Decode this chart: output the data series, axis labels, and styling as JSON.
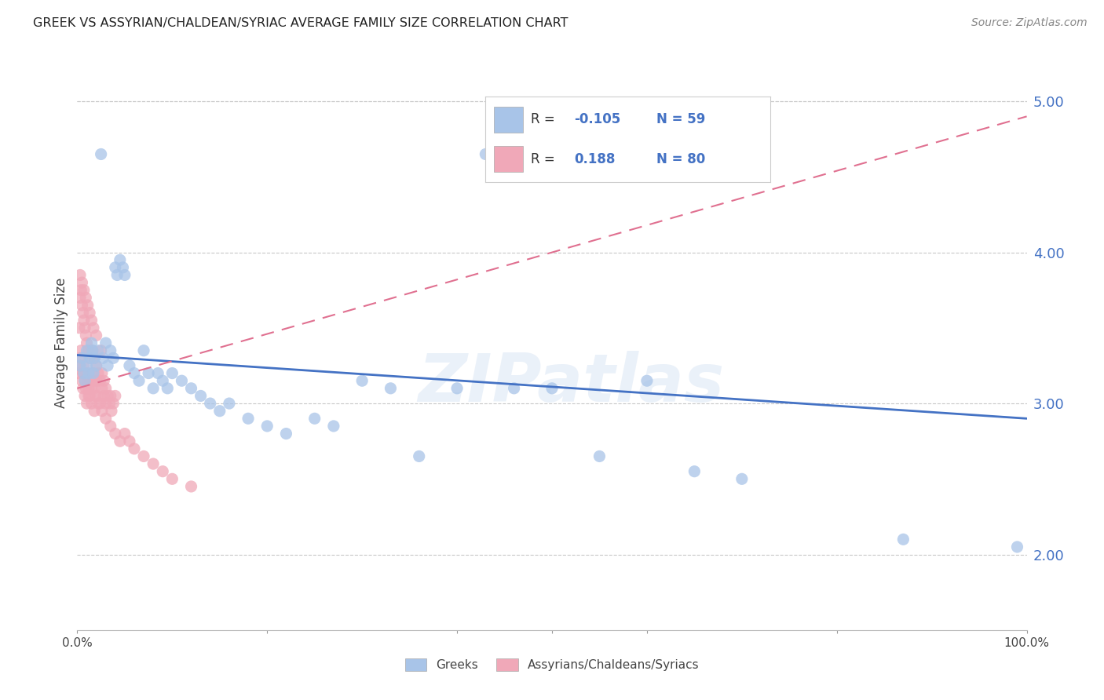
{
  "title": "GREEK VS ASSYRIAN/CHALDEAN/SYRIAC AVERAGE FAMILY SIZE CORRELATION CHART",
  "source": "Source: ZipAtlas.com",
  "ylabel": "Average Family Size",
  "watermark": "ZIPatlas",
  "blue_label": "Greeks",
  "pink_label": "Assyrians/Chaldeans/Syriacs",
  "blue_R": "-0.105",
  "blue_N": "59",
  "pink_R": "0.188",
  "pink_N": "80",
  "blue_color": "#a8c4e8",
  "pink_color": "#f0a8b8",
  "blue_line_color": "#4472c4",
  "pink_line_color": "#e07090",
  "grid_color": "#c8c8c8",
  "background_color": "#ffffff",
  "text_blue": "#4472c4",
  "xlim": [
    0.0,
    1.0
  ],
  "ylim": [
    1.5,
    5.3
  ],
  "yticks": [
    2.0,
    3.0,
    4.0,
    5.0
  ],
  "blue_scatter_x": [
    0.003,
    0.005,
    0.007,
    0.008,
    0.01,
    0.01,
    0.012,
    0.013,
    0.015,
    0.016,
    0.017,
    0.018,
    0.02,
    0.022,
    0.025,
    0.027,
    0.03,
    0.032,
    0.035,
    0.038,
    0.04,
    0.042,
    0.045,
    0.048,
    0.05,
    0.055,
    0.06,
    0.065,
    0.07,
    0.075,
    0.08,
    0.085,
    0.09,
    0.095,
    0.1,
    0.11,
    0.12,
    0.13,
    0.14,
    0.15,
    0.16,
    0.18,
    0.2,
    0.22,
    0.25,
    0.27,
    0.3,
    0.33,
    0.36,
    0.4,
    0.43,
    0.46,
    0.5,
    0.55,
    0.6,
    0.65,
    0.7,
    0.87,
    0.99
  ],
  "blue_scatter_y": [
    3.25,
    3.3,
    3.2,
    3.15,
    3.25,
    3.35,
    3.2,
    3.3,
    3.4,
    3.35,
    3.2,
    3.3,
    3.25,
    3.35,
    4.65,
    3.3,
    3.4,
    3.25,
    3.35,
    3.3,
    3.9,
    3.85,
    3.95,
    3.9,
    3.85,
    3.25,
    3.2,
    3.15,
    3.35,
    3.2,
    3.1,
    3.2,
    3.15,
    3.1,
    3.2,
    3.15,
    3.1,
    3.05,
    3.0,
    2.95,
    3.0,
    2.9,
    2.85,
    2.8,
    2.9,
    2.85,
    3.15,
    3.1,
    2.65,
    3.1,
    4.65,
    3.1,
    3.1,
    2.65,
    3.15,
    2.55,
    2.5,
    2.1,
    2.05
  ],
  "pink_scatter_x": [
    0.001,
    0.002,
    0.003,
    0.004,
    0.005,
    0.006,
    0.007,
    0.008,
    0.009,
    0.01,
    0.011,
    0.012,
    0.013,
    0.014,
    0.015,
    0.016,
    0.017,
    0.018,
    0.019,
    0.02,
    0.022,
    0.024,
    0.026,
    0.028,
    0.03,
    0.032,
    0.034,
    0.036,
    0.038,
    0.04,
    0.002,
    0.003,
    0.004,
    0.005,
    0.006,
    0.007,
    0.008,
    0.009,
    0.01,
    0.012,
    0.014,
    0.016,
    0.018,
    0.02,
    0.022,
    0.024,
    0.026,
    0.028,
    0.03,
    0.035,
    0.003,
    0.005,
    0.007,
    0.009,
    0.011,
    0.013,
    0.015,
    0.017,
    0.02,
    0.025,
    0.006,
    0.008,
    0.01,
    0.012,
    0.015,
    0.018,
    0.022,
    0.026,
    0.03,
    0.035,
    0.04,
    0.045,
    0.05,
    0.055,
    0.06,
    0.07,
    0.08,
    0.09,
    0.1,
    0.12
  ],
  "pink_scatter_y": [
    3.2,
    3.25,
    3.3,
    3.35,
    3.15,
    3.2,
    3.25,
    3.15,
    3.1,
    3.2,
    3.15,
    3.1,
    3.05,
    3.15,
    3.1,
    3.2,
    3.15,
    3.1,
    3.05,
    3.15,
    3.05,
    3.0,
    3.1,
    3.05,
    3.0,
    3.05,
    3.0,
    2.95,
    3.0,
    3.05,
    3.5,
    3.7,
    3.75,
    3.65,
    3.6,
    3.55,
    3.5,
    3.45,
    3.4,
    3.35,
    3.3,
    3.35,
    3.3,
    3.25,
    3.2,
    3.15,
    3.2,
    3.15,
    3.1,
    3.05,
    3.85,
    3.8,
    3.75,
    3.7,
    3.65,
    3.6,
    3.55,
    3.5,
    3.45,
    3.35,
    3.1,
    3.05,
    3.0,
    3.05,
    3.0,
    2.95,
    3.0,
    2.95,
    2.9,
    2.85,
    2.8,
    2.75,
    2.8,
    2.75,
    2.7,
    2.65,
    2.6,
    2.55,
    2.5,
    2.45
  ],
  "blue_line_x": [
    0.0,
    1.0
  ],
  "blue_line_y": [
    3.32,
    2.9
  ],
  "pink_line_x": [
    0.0,
    1.0
  ],
  "pink_line_y": [
    3.1,
    4.9
  ]
}
